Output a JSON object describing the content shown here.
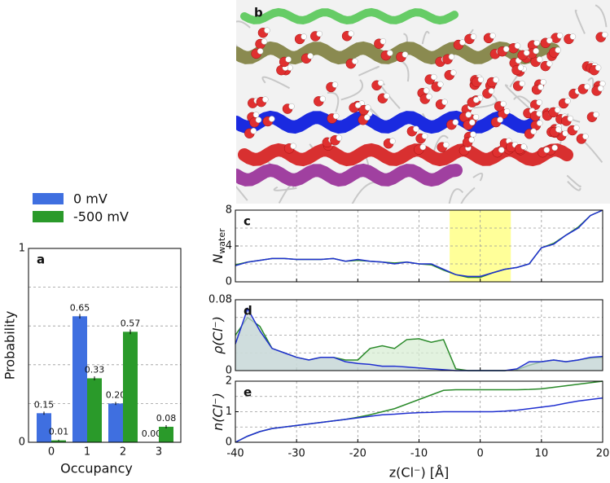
{
  "image_panel": {
    "label": "b"
  },
  "chart_data": [
    {
      "type": "bar",
      "panel_label": "a",
      "xlabel": "Occupancy",
      "ylabel": "Probability",
      "categories": [
        "0",
        "1",
        "2",
        "3"
      ],
      "series": [
        {
          "name": "0 mV",
          "color": "#3f6fe0",
          "values": [
            0.15,
            0.65,
            0.2,
            0.0
          ],
          "value_labels": [
            "0.15",
            "0.65",
            "0.20",
            "0.00"
          ],
          "errors": [
            0.008,
            0.012,
            0.008,
            0.0
          ]
        },
        {
          "name": "-500 mV",
          "color": "#2a9a2a",
          "values": [
            0.01,
            0.33,
            0.57,
            0.08
          ],
          "value_labels": [
            "0.01",
            "0.33",
            "0.57",
            "0.08"
          ],
          "errors": [
            0.003,
            0.01,
            0.012,
            0.008
          ]
        }
      ],
      "ylim": [
        0,
        1
      ],
      "yticks": [
        0,
        1
      ],
      "grid_yticks": [
        0.2,
        0.4,
        0.6,
        0.8
      ],
      "legend": "above"
    },
    {
      "type": "line",
      "panel_label": "c",
      "ylabel": "N",
      "ylabel_sub": "water",
      "x": [
        -40,
        -38,
        -36,
        -34,
        -32,
        -30,
        -28,
        -26,
        -24,
        -22,
        -20,
        -18,
        -16,
        -14,
        -12,
        -10,
        -8,
        -6,
        -4,
        -2,
        0,
        2,
        4,
        6,
        8,
        10,
        12,
        14,
        16,
        18,
        20
      ],
      "series": [
        {
          "color": "#2a8a2a",
          "values": [
            1.9,
            2.2,
            2.4,
            2.6,
            2.6,
            2.5,
            2.5,
            2.5,
            2.6,
            2.3,
            2.4,
            2.3,
            2.2,
            2.1,
            2.2,
            2.0,
            1.9,
            1.3,
            0.8,
            0.5,
            0.5,
            1.0,
            1.4,
            1.6,
            2.0,
            3.8,
            4.3,
            5.2,
            6.1,
            7.4,
            8.0
          ]
        },
        {
          "color": "#1f2fd0",
          "values": [
            1.8,
            2.2,
            2.4,
            2.6,
            2.6,
            2.5,
            2.5,
            2.5,
            2.6,
            2.3,
            2.5,
            2.3,
            2.2,
            2.0,
            2.2,
            2.0,
            2.0,
            1.4,
            0.8,
            0.6,
            0.6,
            1.0,
            1.4,
            1.6,
            2.0,
            3.8,
            4.2,
            5.2,
            6.0,
            7.4,
            8.0
          ]
        }
      ],
      "xlim": [
        -40,
        20
      ],
      "xticks": [
        -40,
        -30,
        -20,
        -10,
        0,
        10,
        20
      ],
      "ylim": [
        0,
        8
      ],
      "yticks": [
        0,
        4,
        8
      ],
      "grid_yticks": [
        2,
        4,
        6
      ],
      "highlight": [
        -5,
        5
      ],
      "highlight_color": "#ffff99"
    },
    {
      "type": "area",
      "panel_label": "d",
      "ylabel": "ρ(Cl⁻)",
      "x": [
        -40,
        -38,
        -36,
        -34,
        -32,
        -30,
        -28,
        -26,
        -24,
        -22,
        -20,
        -18,
        -16,
        -14,
        -12,
        -10,
        -8,
        -6,
        -4,
        -2,
        0,
        2,
        4,
        6,
        8,
        10,
        12,
        14,
        16,
        18,
        20
      ],
      "series": [
        {
          "color": "#2a8a2a",
          "fill": "#d6ecd2",
          "values": [
            0.04,
            0.06,
            0.05,
            0.025,
            0.02,
            0.015,
            0.012,
            0.015,
            0.015,
            0.012,
            0.012,
            0.025,
            0.028,
            0.025,
            0.035,
            0.036,
            0.032,
            0.035,
            0.002,
            0,
            0,
            0,
            0,
            0.001,
            0.006,
            0.01,
            0.012,
            0.01,
            0.012,
            0.014,
            0.015
          ]
        },
        {
          "color": "#1f2fd0",
          "fill": "#c8d4dc",
          "values": [
            0.03,
            0.07,
            0.045,
            0.025,
            0.02,
            0.015,
            0.012,
            0.015,
            0.015,
            0.01,
            0.008,
            0.007,
            0.005,
            0.005,
            0.004,
            0.003,
            0.002,
            0.001,
            0,
            0,
            0,
            0,
            0,
            0.002,
            0.01,
            0.01,
            0.012,
            0.01,
            0.012,
            0.015,
            0.016
          ]
        }
      ],
      "xlim": [
        -40,
        20
      ],
      "xticks": [
        -40,
        -30,
        -20,
        -10,
        0,
        10,
        20
      ],
      "ylim": [
        0,
        0.08
      ],
      "yticks": [
        0,
        0.08
      ],
      "grid_yticks": [
        0.02,
        0.04,
        0.06
      ]
    },
    {
      "type": "line",
      "panel_label": "e",
      "ylabel": "n(Cl⁻)",
      "xlabel": "z(Cl⁻) [Å]",
      "x": [
        -40,
        -38,
        -36,
        -34,
        -32,
        -30,
        -28,
        -26,
        -24,
        -22,
        -20,
        -18,
        -16,
        -14,
        -12,
        -10,
        -8,
        -6,
        -4,
        -2,
        0,
        2,
        4,
        6,
        8,
        10,
        12,
        14,
        16,
        18,
        20
      ],
      "series": [
        {
          "color": "#2a8a2a",
          "values": [
            0,
            0.2,
            0.35,
            0.45,
            0.5,
            0.55,
            0.6,
            0.65,
            0.7,
            0.75,
            0.82,
            0.9,
            1.0,
            1.1,
            1.25,
            1.4,
            1.55,
            1.7,
            1.72,
            1.72,
            1.72,
            1.72,
            1.72,
            1.72,
            1.73,
            1.75,
            1.8,
            1.85,
            1.9,
            1.95,
            2.0
          ]
        },
        {
          "color": "#1f2fd0",
          "values": [
            0,
            0.2,
            0.35,
            0.45,
            0.5,
            0.55,
            0.6,
            0.65,
            0.7,
            0.75,
            0.8,
            0.85,
            0.9,
            0.92,
            0.95,
            0.97,
            0.98,
            1.0,
            1.0,
            1.0,
            1.0,
            1.0,
            1.02,
            1.05,
            1.1,
            1.15,
            1.2,
            1.28,
            1.35,
            1.4,
            1.45
          ]
        }
      ],
      "xlim": [
        -40,
        20
      ],
      "xticks": [
        -40,
        -30,
        -20,
        -10,
        0,
        10,
        20
      ],
      "ylim": [
        0,
        2
      ],
      "yticks": [
        0,
        1,
        2
      ],
      "grid_yticks": [
        0.5,
        1,
        1.5
      ]
    }
  ]
}
